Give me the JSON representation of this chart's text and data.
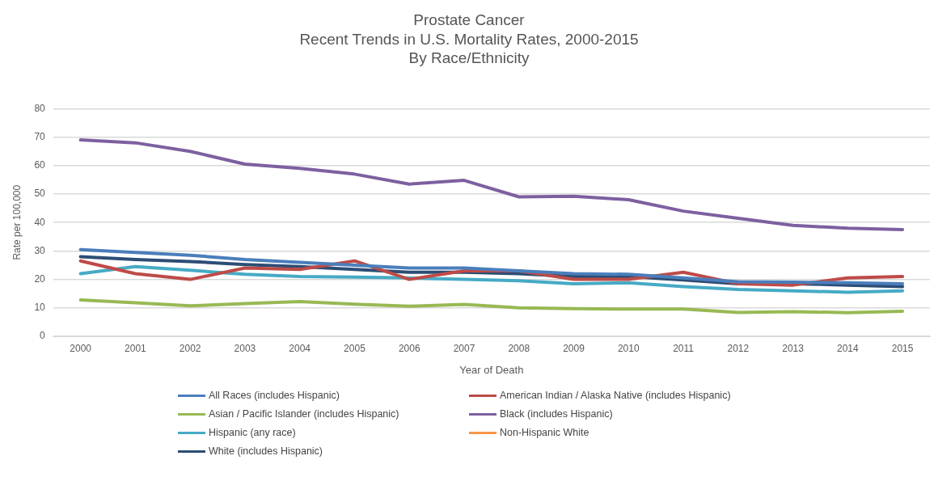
{
  "chart_data": {
    "type": "line",
    "title": "Prostate Cancer",
    "subtitle": "Recent Trends in U.S. Mortality Rates, 2000-2015\nBy Race/Ethnicity",
    "xlabel": "Year of Death",
    "ylabel": "Rate per 100,000",
    "categories": [
      "2000",
      "2001",
      "2002",
      "2003",
      "2004",
      "2005",
      "2006",
      "2007",
      "2008",
      "2009",
      "2010",
      "2011",
      "2012",
      "2013",
      "2014",
      "2015"
    ],
    "ylim": [
      0,
      80
    ],
    "yticks": [
      0,
      10,
      20,
      30,
      40,
      50,
      60,
      70,
      80
    ],
    "grid": "y",
    "legend": "bottom",
    "marker": "none",
    "line_style": "solid",
    "series": [
      {
        "name": "All Races (includes Hispanic)",
        "color": "#4a7ebb",
        "values": [
          30.5,
          29.5,
          28.5,
          27,
          26,
          25,
          24,
          24,
          23,
          22,
          21.8,
          20.5,
          19.2,
          19,
          18.8,
          18.5
        ]
      },
      {
        "name": "American Indian / Alaska Native (includes Hispanic)",
        "color": "#be4b48",
        "values": [
          26.5,
          22,
          20,
          24,
          23.5,
          26.5,
          20,
          23,
          23,
          20,
          20,
          22.5,
          18.5,
          18,
          20.5,
          21
        ]
      },
      {
        "name": "Asian / Pacific Islander (includes Hispanic)",
        "color": "#98b954",
        "values": [
          12.8,
          11.8,
          10.7,
          11.5,
          12.2,
          11.3,
          10.6,
          11.2,
          10,
          9.7,
          9.6,
          9.6,
          8.4,
          8.7,
          8.3,
          8.8
        ]
      },
      {
        "name": "Black (includes Hispanic)",
        "color": "#7d60a0",
        "values": [
          69,
          68,
          65,
          60.5,
          59,
          57,
          53.5,
          54.8,
          49,
          49.2,
          48,
          44,
          41.5,
          39,
          38,
          37.5
        ]
      },
      {
        "name": "Hispanic (any race)",
        "color": "#46aac5",
        "values": [
          22,
          24.5,
          23.2,
          21.8,
          21,
          20.8,
          20.5,
          20,
          19.5,
          18.5,
          18.8,
          17.5,
          16.5,
          16,
          15.5,
          16
        ]
      },
      {
        "name": "Non-Hispanic White",
        "color": "#f79646",
        "values": [
          null,
          null,
          null,
          null,
          null,
          null,
          null,
          null,
          null,
          null,
          null,
          null,
          null,
          null,
          null,
          null
        ]
      },
      {
        "name": "White (includes Hispanic)",
        "color": "#2c4d75",
        "values": [
          28,
          27,
          26.3,
          25.2,
          24.5,
          23.5,
          22.5,
          22.5,
          22,
          21,
          21,
          19.8,
          18.5,
          18.5,
          18,
          17.5
        ]
      }
    ]
  }
}
